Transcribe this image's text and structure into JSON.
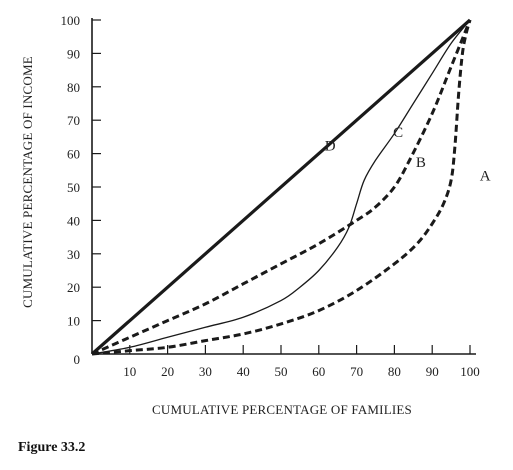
{
  "figure": {
    "caption": "Figure 33.2"
  },
  "chart_data": {
    "type": "line",
    "title": "",
    "xlabel": "CUMULATIVE PERCENTAGE OF FAMILIES",
    "ylabel": "CUMULATIVE PERCENTAGE OF INCOME",
    "xlim": [
      0,
      100
    ],
    "ylim": [
      0,
      100
    ],
    "x_ticks": [
      10,
      20,
      30,
      40,
      50,
      60,
      70,
      80,
      90,
      100
    ],
    "y_ticks": [
      10,
      20,
      30,
      40,
      50,
      60,
      70,
      80,
      90,
      100
    ],
    "origin_label": "0",
    "grid": false,
    "legend": "none",
    "series": [
      {
        "name": "D",
        "style": "solid-thick",
        "points": [
          [
            0,
            0
          ],
          [
            100,
            100
          ]
        ]
      },
      {
        "name": "C",
        "style": "solid-thin",
        "points": [
          [
            0,
            0
          ],
          [
            10,
            2
          ],
          [
            20,
            5
          ],
          [
            30,
            8
          ],
          [
            40,
            11
          ],
          [
            50,
            16
          ],
          [
            55,
            20
          ],
          [
            60,
            25
          ],
          [
            65,
            32
          ],
          [
            68,
            38
          ],
          [
            70,
            45
          ],
          [
            72,
            52
          ],
          [
            75,
            58
          ],
          [
            80,
            66
          ],
          [
            85,
            75
          ],
          [
            90,
            84
          ],
          [
            95,
            93
          ],
          [
            100,
            100
          ]
        ]
      },
      {
        "name": "B",
        "style": "dashed",
        "points": [
          [
            0,
            0
          ],
          [
            10,
            5
          ],
          [
            20,
            10
          ],
          [
            30,
            15
          ],
          [
            40,
            21
          ],
          [
            50,
            27
          ],
          [
            60,
            33
          ],
          [
            70,
            40
          ],
          [
            75,
            44
          ],
          [
            80,
            50
          ],
          [
            84,
            58
          ],
          [
            90,
            72
          ],
          [
            95,
            86
          ],
          [
            100,
            100
          ]
        ]
      },
      {
        "name": "A",
        "style": "dashed",
        "points": [
          [
            0,
            0
          ],
          [
            10,
            1
          ],
          [
            20,
            2
          ],
          [
            30,
            4
          ],
          [
            40,
            6
          ],
          [
            50,
            9
          ],
          [
            60,
            13
          ],
          [
            70,
            19
          ],
          [
            80,
            27
          ],
          [
            86,
            33
          ],
          [
            90,
            39
          ],
          [
            93,
            45
          ],
          [
            95,
            52
          ],
          [
            96,
            62
          ],
          [
            97,
            78
          ],
          [
            98,
            90
          ],
          [
            99,
            96
          ],
          [
            100,
            100
          ]
        ]
      }
    ],
    "curve_labels": [
      {
        "text": "D",
        "x": 63,
        "y": 61
      },
      {
        "text": "C",
        "x": 81,
        "y": 65
      },
      {
        "text": "B",
        "x": 87,
        "y": 56
      },
      {
        "text": "A",
        "x": 104,
        "y": 52
      }
    ],
    "colors": {
      "ink": "#1a1a1a"
    }
  }
}
